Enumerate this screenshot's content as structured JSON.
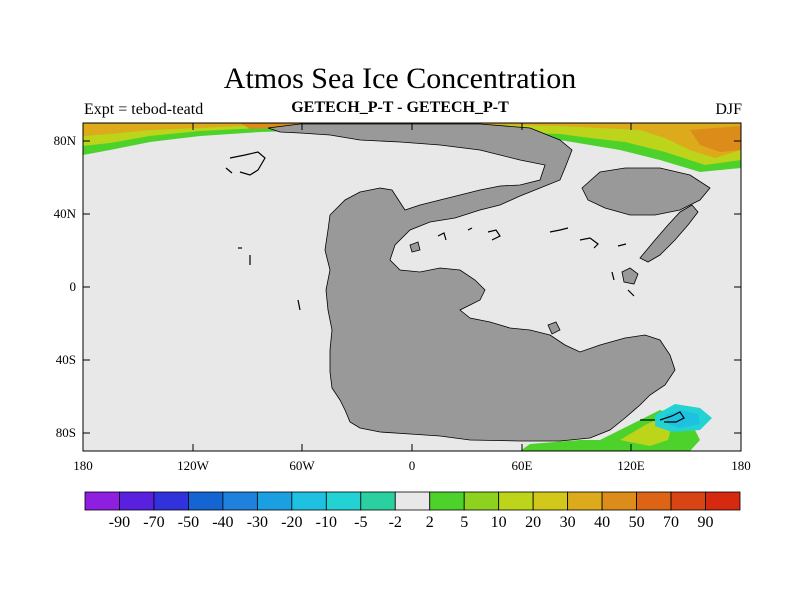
{
  "header": {
    "title": "Atmos Sea Ice Concentration",
    "left_string": "Expt = tebod-teatd",
    "center_string": "GETECH_P-T - GETECH_P-T",
    "right_string": "DJF"
  },
  "map": {
    "x_ticks": [
      "180",
      "120W",
      "60W",
      "0",
      "60E",
      "120E",
      "180"
    ],
    "y_ticks": [
      "80N",
      "40N",
      "0",
      "40S",
      "80S"
    ],
    "lon_range": [
      -180,
      180
    ],
    "lat_range": [
      -90,
      90
    ],
    "colors": {
      "land": "#999999",
      "ocean_zero": "#e8e8e8"
    }
  },
  "colorbar": {
    "labels": [
      "-90",
      "-70",
      "-50",
      "-40",
      "-30",
      "-20",
      "-10",
      "-5",
      "-2",
      "2",
      "5",
      "10",
      "20",
      "30",
      "40",
      "50",
      "70",
      "90"
    ],
    "colors": [
      "#8e1fe0",
      "#5a20e0",
      "#3232dc",
      "#1464d2",
      "#1e82dc",
      "#1aa0e0",
      "#1ec2e0",
      "#23d2d2",
      "#2ad0a0",
      "#e8e8e8",
      "#4cd22a",
      "#8cd21e",
      "#bcd41a",
      "#d2c81a",
      "#dcaa1a",
      "#dc8c18",
      "#dc6414",
      "#d84414",
      "#d62a10"
    ]
  }
}
